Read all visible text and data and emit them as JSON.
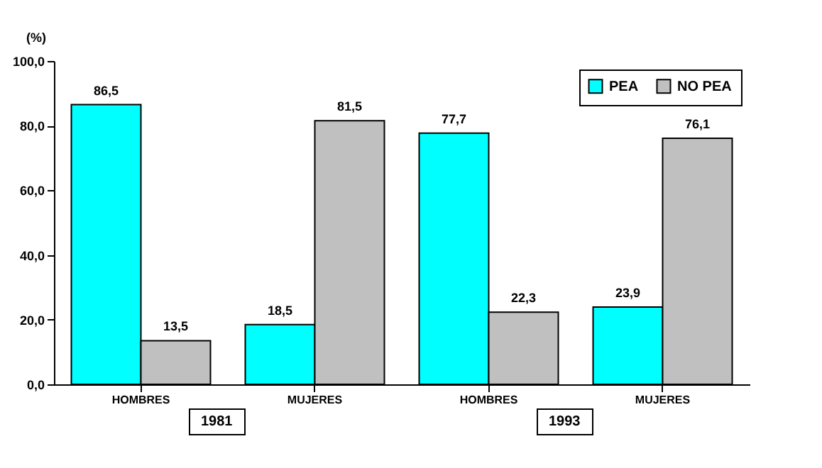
{
  "chart_data": {
    "type": "bar",
    "ylabel": "(%)",
    "categories": [
      "HOMBRES",
      "MUJERES",
      "HOMBRES",
      "MUJERES"
    ],
    "series": [
      {
        "name": "PEA",
        "color": "#00ffff",
        "values": [
          86.5,
          18.5,
          77.7,
          23.9
        ],
        "value_labels": [
          "86,5",
          "18,5",
          "77,7",
          "23,9"
        ]
      },
      {
        "name": "NO PEA",
        "color": "#c0c0c0",
        "values": [
          13.5,
          81.5,
          22.3,
          76.1
        ],
        "value_labels": [
          "13,5",
          "81,5",
          "22,3",
          "76,1"
        ]
      }
    ],
    "ylim": [
      0,
      100
    ],
    "yticks": [
      {
        "value": 0,
        "label": "0,0"
      },
      {
        "value": 20,
        "label": "20,0"
      },
      {
        "value": 40,
        "label": "40,0"
      },
      {
        "value": 60,
        "label": "60,0"
      },
      {
        "value": 80,
        "label": "80,0"
      },
      {
        "value": 100,
        "label": "100,0"
      }
    ],
    "grid": false,
    "legend": "top right",
    "annotations": [
      "1981",
      "1993"
    ]
  }
}
